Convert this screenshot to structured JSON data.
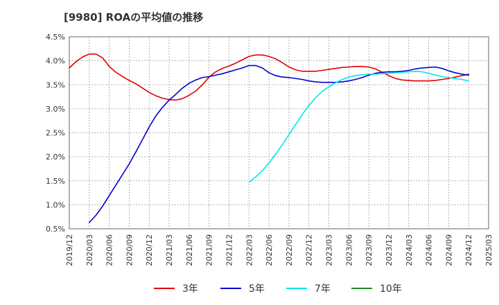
{
  "title": "[9980]  ROAの平均値の推移",
  "chart_data": {
    "type": "line",
    "title": "[9980]  ROAの平均値の推移",
    "xlabel": "",
    "ylabel": "",
    "y_ticks": [
      "4.5%",
      "4.0%",
      "3.5%",
      "3.0%",
      "2.5%",
      "2.0%",
      "1.5%",
      "1.0%",
      "0.5%"
    ],
    "ylim": [
      0.5,
      4.5
    ],
    "x_ticks": [
      "2019/12",
      "2020/03",
      "2020/06",
      "2020/09",
      "2020/12",
      "2021/03",
      "2021/06",
      "2021/09",
      "2021/12",
      "2022/03",
      "2022/06",
      "2022/09",
      "2022/12",
      "2023/03",
      "2023/06",
      "2023/09",
      "2023/12",
      "2024/03",
      "2024/06",
      "2024/09",
      "2024/12",
      "2025/03"
    ],
    "grid": true,
    "legend_position": "bottom",
    "series": [
      {
        "name": "3年",
        "color": "#e00000",
        "x": [
          "2019/12",
          "2020/01",
          "2020/02",
          "2020/03",
          "2020/04",
          "2020/05",
          "2020/06",
          "2020/07",
          "2020/08",
          "2020/09",
          "2020/10",
          "2020/11",
          "2020/12",
          "2021/01",
          "2021/02",
          "2021/03",
          "2021/04",
          "2021/05",
          "2021/06",
          "2021/07",
          "2021/08",
          "2021/09",
          "2021/10",
          "2021/11",
          "2021/12",
          "2022/01",
          "2022/02",
          "2022/03",
          "2022/04",
          "2022/05",
          "2022/06",
          "2022/07",
          "2022/08",
          "2022/09",
          "2022/10",
          "2022/11",
          "2022/12",
          "2023/01",
          "2023/02",
          "2023/03",
          "2023/04",
          "2023/05",
          "2023/06",
          "2023/07",
          "2023/08",
          "2023/09",
          "2023/10",
          "2023/11",
          "2023/12",
          "2024/01",
          "2024/02",
          "2024/03",
          "2024/04",
          "2024/05",
          "2024/06",
          "2024/07",
          "2024/08",
          "2024/09",
          "2024/10",
          "2024/11",
          "2024/12"
        ],
        "values": [
          3.85,
          3.98,
          4.08,
          4.14,
          4.14,
          4.06,
          3.88,
          3.76,
          3.67,
          3.59,
          3.52,
          3.43,
          3.34,
          3.27,
          3.22,
          3.19,
          3.18,
          3.21,
          3.28,
          3.37,
          3.5,
          3.66,
          3.77,
          3.84,
          3.89,
          3.95,
          4.02,
          4.09,
          4.12,
          4.12,
          4.09,
          4.04,
          3.96,
          3.87,
          3.81,
          3.78,
          3.78,
          3.78,
          3.8,
          3.82,
          3.84,
          3.86,
          3.87,
          3.88,
          3.88,
          3.87,
          3.83,
          3.76,
          3.69,
          3.63,
          3.6,
          3.59,
          3.58,
          3.58,
          3.58,
          3.59,
          3.61,
          3.63,
          3.66,
          3.69,
          3.72
        ]
      },
      {
        "name": "5年",
        "color": "#0000cc",
        "x": [
          "2020/03",
          "2020/04",
          "2020/05",
          "2020/06",
          "2020/07",
          "2020/08",
          "2020/09",
          "2020/10",
          "2020/11",
          "2020/12",
          "2021/01",
          "2021/02",
          "2021/03",
          "2021/04",
          "2021/05",
          "2021/06",
          "2021/07",
          "2021/08",
          "2021/09",
          "2021/10",
          "2021/11",
          "2021/12",
          "2022/01",
          "2022/02",
          "2022/03",
          "2022/04",
          "2022/05",
          "2022/06",
          "2022/07",
          "2022/08",
          "2022/09",
          "2022/10",
          "2022/11",
          "2022/12",
          "2023/01",
          "2023/02",
          "2023/03",
          "2023/04",
          "2023/05",
          "2023/06",
          "2023/07",
          "2023/08",
          "2023/09",
          "2023/10",
          "2023/11",
          "2023/12",
          "2024/01",
          "2024/02",
          "2024/03",
          "2024/04",
          "2024/05",
          "2024/06",
          "2024/07",
          "2024/08",
          "2024/09",
          "2024/10",
          "2024/11",
          "2024/12"
        ],
        "values": [
          0.63,
          0.78,
          0.97,
          1.19,
          1.41,
          1.63,
          1.85,
          2.1,
          2.36,
          2.62,
          2.85,
          3.03,
          3.18,
          3.3,
          3.43,
          3.53,
          3.6,
          3.65,
          3.67,
          3.7,
          3.73,
          3.77,
          3.81,
          3.85,
          3.9,
          3.9,
          3.85,
          3.75,
          3.69,
          3.66,
          3.65,
          3.63,
          3.61,
          3.58,
          3.56,
          3.55,
          3.55,
          3.55,
          3.56,
          3.58,
          3.61,
          3.65,
          3.7,
          3.74,
          3.76,
          3.77,
          3.77,
          3.78,
          3.8,
          3.83,
          3.85,
          3.86,
          3.87,
          3.84,
          3.79,
          3.75,
          3.72,
          3.7
        ]
      },
      {
        "name": "7年",
        "color": "#00e5ee",
        "x": [
          "2022/03",
          "2022/04",
          "2022/05",
          "2022/06",
          "2022/07",
          "2022/08",
          "2022/09",
          "2022/10",
          "2022/11",
          "2022/12",
          "2023/01",
          "2023/02",
          "2023/03",
          "2023/04",
          "2023/05",
          "2023/06",
          "2023/07",
          "2023/08",
          "2023/09",
          "2023/10",
          "2023/11",
          "2023/12",
          "2024/01",
          "2024/02",
          "2024/03",
          "2024/04",
          "2024/05",
          "2024/06",
          "2024/07",
          "2024/08",
          "2024/09",
          "2024/10",
          "2024/11",
          "2024/12"
        ],
        "values": [
          1.47,
          1.58,
          1.71,
          1.87,
          2.05,
          2.25,
          2.46,
          2.67,
          2.88,
          3.07,
          3.23,
          3.36,
          3.46,
          3.54,
          3.61,
          3.66,
          3.69,
          3.71,
          3.72,
          3.72,
          3.73,
          3.74,
          3.75,
          3.76,
          3.77,
          3.78,
          3.77,
          3.74,
          3.7,
          3.67,
          3.65,
          3.63,
          3.61,
          3.58
        ]
      },
      {
        "name": "10年",
        "color": "#228b22",
        "x": [],
        "values": []
      }
    ]
  }
}
